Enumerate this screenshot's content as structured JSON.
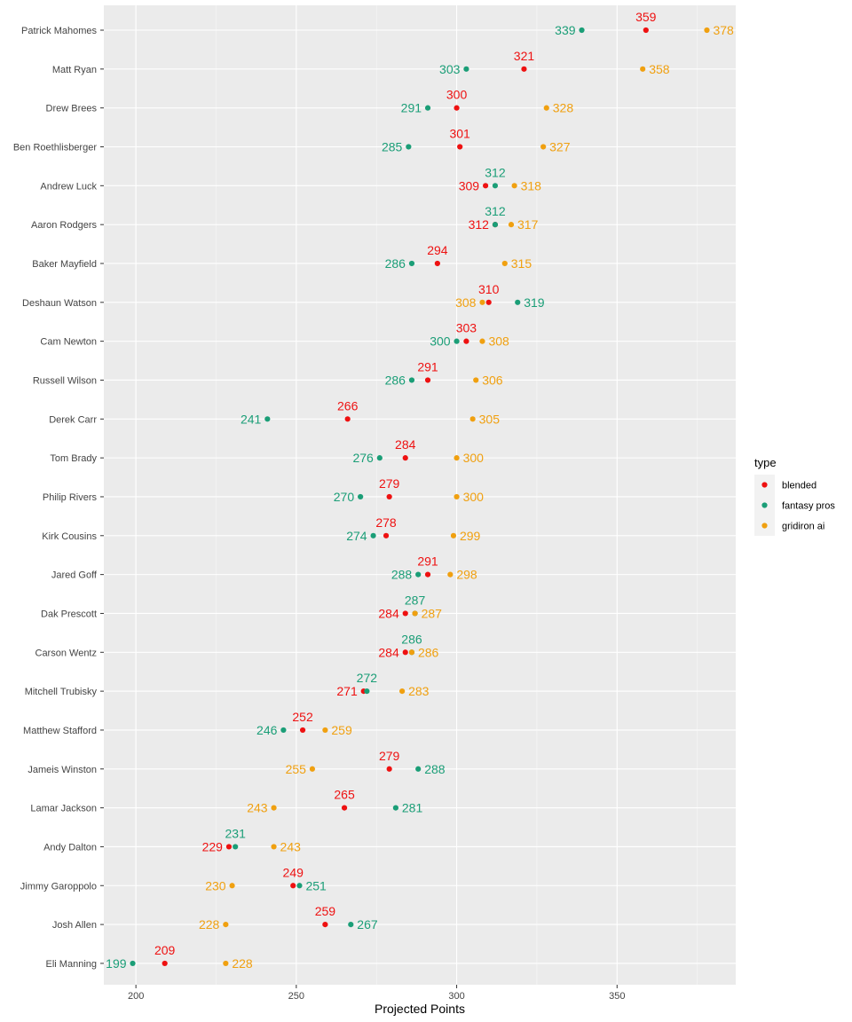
{
  "chart_data": {
    "type": "scatter",
    "xlabel": "Projected Points",
    "ylabel": "",
    "xlim": [
      190,
      387
    ],
    "xticks": [
      200,
      250,
      300,
      350
    ],
    "grid": true,
    "legend_position": "right",
    "legend_title": "type",
    "categories": [
      "Patrick Mahomes",
      "Matt Ryan",
      "Drew Brees",
      "Ben Roethlisberger",
      "Andrew Luck",
      "Aaron Rodgers",
      "Baker Mayfield",
      "Deshaun Watson",
      "Cam Newton",
      "Russell Wilson",
      "Derek Carr",
      "Tom Brady",
      "Philip Rivers",
      "Kirk Cousins",
      "Jared Goff",
      "Dak Prescott",
      "Carson Wentz",
      "Mitchell Trubisky",
      "Matthew Stafford",
      "Jameis Winston",
      "Lamar Jackson",
      "Andy Dalton",
      "Jimmy Garoppolo",
      "Josh Allen",
      "Eli Manning"
    ],
    "series": [
      {
        "name": "blended",
        "color": "#ee1111",
        "values": [
          359,
          321,
          300,
          301,
          309,
          312,
          294,
          310,
          303,
          291,
          266,
          284,
          279,
          278,
          291,
          284,
          284,
          271,
          252,
          279,
          265,
          229,
          249,
          259,
          209
        ]
      },
      {
        "name": "fantasy pros",
        "color": "#1b9e77",
        "values": [
          339,
          303,
          291,
          285,
          312,
          312,
          286,
          319,
          300,
          286,
          241,
          276,
          270,
          274,
          288,
          287,
          286,
          272,
          246,
          288,
          281,
          231,
          251,
          267,
          199
        ]
      },
      {
        "name": "gridiron ai",
        "color": "#f0a010",
        "values": [
          378,
          358,
          328,
          327,
          318,
          317,
          315,
          308,
          308,
          306,
          305,
          300,
          300,
          299,
          298,
          287,
          286,
          283,
          259,
          255,
          243,
          243,
          230,
          228,
          228
        ]
      }
    ]
  }
}
